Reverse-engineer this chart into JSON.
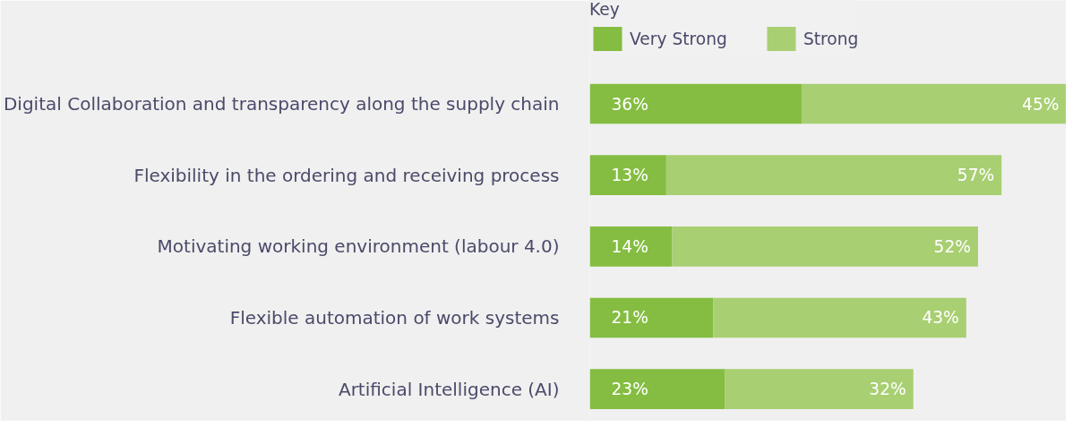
{
  "chart_data": {
    "type": "bar",
    "orientation": "horizontal",
    "stacked": true,
    "legend": "top",
    "legend_title": "Key",
    "tick_labels": "y",
    "grid": false,
    "categories": [
      "Digital Collaboration and transparency along the supply chain",
      "Flexibility in the ordering and receiving process",
      "Motivating working environment (labour 4.0)",
      "Flexible automation of work systems",
      "Artificial Intelligence (AI)"
    ],
    "series": [
      {
        "name": "Very Strong",
        "color": "#84bd41",
        "values": [
          36,
          13,
          14,
          21,
          23
        ],
        "value_labels": [
          "36%",
          "13%",
          "14%",
          "21%",
          "23%"
        ]
      },
      {
        "name": "Strong",
        "color": "#a8cf72",
        "values": [
          45,
          57,
          52,
          43,
          32
        ],
        "value_labels": [
          "45%",
          "57%",
          "52%",
          "43%",
          "32%"
        ]
      }
    ]
  }
}
